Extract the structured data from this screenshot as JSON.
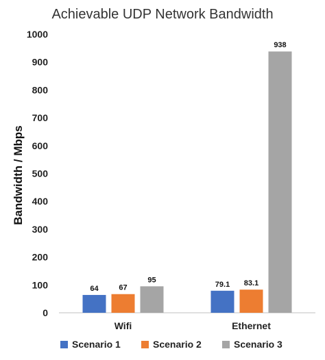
{
  "chart_data": {
    "type": "bar",
    "title": "Achievable UDP Network Bandwidth",
    "xlabel": "",
    "ylabel": "Bandwidth / Mbps",
    "categories": [
      "Wifi",
      "Ethernet"
    ],
    "series": [
      {
        "name": "Scenario 1",
        "values": [
          64,
          79.1
        ],
        "labels": [
          "64",
          "79.1"
        ],
        "color": "#4472C4"
      },
      {
        "name": "Scenario 2",
        "values": [
          67,
          83.1
        ],
        "labels": [
          "67",
          "83.1"
        ],
        "color": "#ED7D31"
      },
      {
        "name": "Scenario 3",
        "values": [
          95,
          938
        ],
        "labels": [
          "95",
          "938"
        ],
        "color": "#A5A5A5"
      }
    ],
    "ylim": [
      0,
      1000
    ],
    "yticks": [
      "0",
      "100",
      "200",
      "300",
      "400",
      "500",
      "600",
      "700",
      "800",
      "900",
      "1000"
    ],
    "grid": false,
    "legend_position": "bottom"
  }
}
